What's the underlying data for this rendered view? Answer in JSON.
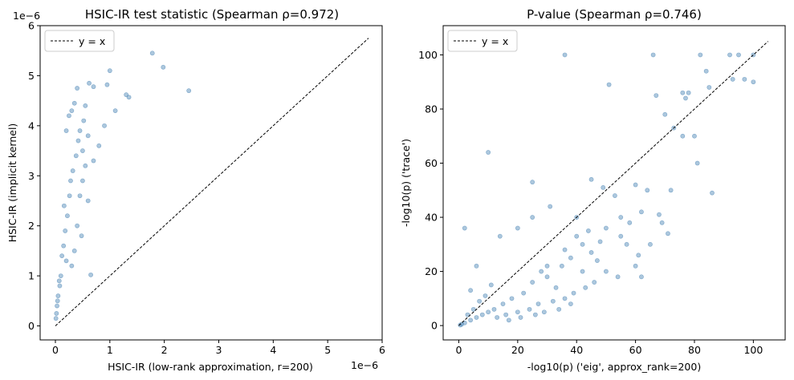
{
  "chart_data": [
    {
      "type": "scatter",
      "title": "HSIC-IR test statistic (Spearman ρ=0.972)",
      "xlabel": "HSIC-IR (low-rank approximation, r=200)",
      "ylabel": "HSIC-IR (implicit kernel)",
      "x_offset_text": "1e−6",
      "y_offset_text": "1e−6",
      "xlim": [
        -0.28,
        6.0
      ],
      "ylim": [
        -0.28,
        6.0
      ],
      "xticks": [
        0,
        1,
        2,
        3,
        4,
        5,
        6
      ],
      "yticks": [
        0,
        1,
        2,
        3,
        4,
        5,
        6
      ],
      "xtick_labels": [
        "0",
        "1",
        "2",
        "3",
        "4",
        "5",
        "6"
      ],
      "ytick_labels": [
        "0",
        "1",
        "2",
        "3",
        "4",
        "5",
        "6"
      ],
      "marker_color": "#4682b4",
      "marker_alpha": 0.45,
      "reference_line": {
        "label": "y = x",
        "from": [
          0,
          0
        ],
        "to": [
          5.75,
          5.75
        ],
        "style": "dashed",
        "color": "#000000"
      },
      "legend": {
        "position": "top-left",
        "entries": [
          "y = x"
        ]
      },
      "points": [
        [
          1.78,
          5.45
        ],
        [
          1.98,
          5.17
        ],
        [
          2.45,
          4.7
        ],
        [
          1.0,
          5.1
        ],
        [
          0.95,
          4.82
        ],
        [
          0.7,
          4.78
        ],
        [
          0.62,
          4.85
        ],
        [
          1.3,
          4.62
        ],
        [
          1.35,
          4.57
        ],
        [
          0.4,
          4.75
        ],
        [
          1.1,
          4.3
        ],
        [
          0.55,
          4.4
        ],
        [
          0.9,
          4.0
        ],
        [
          0.6,
          3.8
        ],
        [
          0.35,
          4.45
        ],
        [
          0.3,
          4.3
        ],
        [
          0.8,
          3.6
        ],
        [
          0.7,
          3.3
        ],
        [
          0.5,
          2.9
        ],
        [
          0.65,
          1.02
        ],
        [
          0.5,
          3.5
        ],
        [
          0.45,
          3.9
        ],
        [
          0.25,
          4.2
        ],
        [
          0.2,
          3.9
        ],
        [
          0.55,
          3.2
        ],
        [
          0.45,
          2.6
        ],
        [
          0.4,
          2.0
        ],
        [
          0.6,
          2.5
        ],
        [
          0.48,
          1.8
        ],
        [
          0.35,
          1.5
        ],
        [
          0.3,
          1.2
        ],
        [
          0.22,
          2.2
        ],
        [
          0.18,
          1.9
        ],
        [
          0.12,
          1.4
        ],
        [
          0.1,
          1.0
        ],
        [
          0.08,
          0.8
        ],
        [
          0.05,
          0.6
        ],
        [
          0.03,
          0.4
        ],
        [
          0.02,
          0.25
        ],
        [
          0.01,
          0.15
        ],
        [
          0.04,
          0.5
        ],
        [
          0.07,
          0.9
        ],
        [
          0.15,
          1.6
        ],
        [
          0.26,
          2.6
        ],
        [
          0.32,
          3.1
        ],
        [
          0.38,
          3.4
        ],
        [
          0.28,
          2.9
        ],
        [
          0.16,
          2.4
        ],
        [
          0.2,
          1.3
        ],
        [
          0.42,
          3.7
        ],
        [
          0.52,
          4.1
        ]
      ]
    },
    {
      "type": "scatter",
      "title": "P-value (Spearman ρ=0.746)",
      "xlabel": "-log10(p) ('eig', approx_rank=200)",
      "ylabel": "-log10(p) ('trace')",
      "xlim": [
        -5.3,
        110.8
      ],
      "ylim": [
        -5.3,
        110.8
      ],
      "xticks": [
        0,
        20,
        40,
        60,
        80,
        100
      ],
      "yticks": [
        0,
        20,
        40,
        60,
        80,
        100
      ],
      "xtick_labels": [
        "0",
        "20",
        "40",
        "60",
        "80",
        "100"
      ],
      "ytick_labels": [
        "0",
        "20",
        "40",
        "60",
        "80",
        "100"
      ],
      "marker_color": "#4682b4",
      "marker_alpha": 0.45,
      "reference_line": {
        "label": "y = x",
        "from": [
          0,
          0
        ],
        "to": [
          105,
          105
        ],
        "style": "dashed",
        "color": "#000000"
      },
      "legend": {
        "position": "top-left",
        "entries": [
          "y = x"
        ]
      },
      "points": [
        [
          36,
          100
        ],
        [
          66,
          100
        ],
        [
          82,
          100
        ],
        [
          92,
          100
        ],
        [
          95,
          100
        ],
        [
          100,
          100
        ],
        [
          97,
          91
        ],
        [
          100,
          90
        ],
        [
          93,
          91
        ],
        [
          84,
          94
        ],
        [
          85,
          88
        ],
        [
          76,
          86
        ],
        [
          78,
          86
        ],
        [
          51,
          89
        ],
        [
          67,
          85
        ],
        [
          77,
          84
        ],
        [
          70,
          78
        ],
        [
          73,
          73
        ],
        [
          76,
          70
        ],
        [
          81,
          60
        ],
        [
          86,
          49
        ],
        [
          10,
          64
        ],
        [
          2,
          36
        ],
        [
          25,
          53
        ],
        [
          45,
          54
        ],
        [
          49,
          51
        ],
        [
          53,
          48
        ],
        [
          60,
          52
        ],
        [
          64,
          50
        ],
        [
          62,
          42
        ],
        [
          55,
          40
        ],
        [
          58,
          38
        ],
        [
          69,
          38
        ],
        [
          68,
          41
        ],
        [
          71,
          34
        ],
        [
          61,
          26
        ],
        [
          62,
          18
        ],
        [
          40,
          33
        ],
        [
          42,
          30
        ],
        [
          36,
          28
        ],
        [
          45,
          27
        ],
        [
          38,
          25
        ],
        [
          47,
          24
        ],
        [
          35,
          22
        ],
        [
          30,
          22
        ],
        [
          28,
          20
        ],
        [
          25,
          16
        ],
        [
          30,
          18
        ],
        [
          33,
          14
        ],
        [
          22,
          12
        ],
        [
          18,
          10
        ],
        [
          15,
          8
        ],
        [
          12,
          6
        ],
        [
          10,
          5
        ],
        [
          8,
          4
        ],
        [
          6,
          3
        ],
        [
          4,
          2
        ],
        [
          2,
          1
        ],
        [
          1,
          0.5
        ],
        [
          0.5,
          0.2
        ],
        [
          3,
          4
        ],
        [
          5,
          6
        ],
        [
          7,
          9
        ],
        [
          9,
          11
        ],
        [
          11,
          15
        ],
        [
          4,
          13
        ],
        [
          6,
          22
        ],
        [
          14,
          33
        ],
        [
          20,
          36
        ],
        [
          25,
          40
        ],
        [
          31,
          44
        ],
        [
          40,
          40
        ],
        [
          44,
          35
        ],
        [
          50,
          36
        ],
        [
          55,
          33
        ],
        [
          57,
          30
        ],
        [
          48,
          31
        ],
        [
          42,
          20
        ],
        [
          50,
          20
        ],
        [
          54,
          18
        ],
        [
          60,
          22
        ],
        [
          65,
          30
        ],
        [
          72,
          50
        ],
        [
          80,
          70
        ],
        [
          16,
          4
        ],
        [
          20,
          5
        ],
        [
          24,
          6
        ],
        [
          27,
          8
        ],
        [
          32,
          9
        ],
        [
          36,
          10
        ],
        [
          39,
          12
        ],
        [
          43,
          14
        ],
        [
          46,
          16
        ],
        [
          13,
          3
        ],
        [
          17,
          2
        ],
        [
          21,
          3
        ],
        [
          26,
          4
        ],
        [
          29,
          5
        ],
        [
          34,
          6
        ],
        [
          38,
          8
        ]
      ]
    }
  ]
}
